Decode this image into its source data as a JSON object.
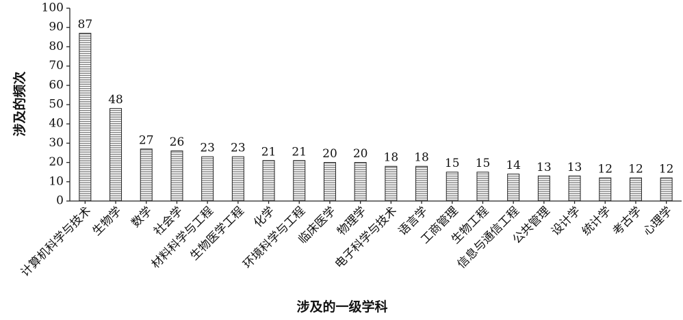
{
  "chart_data": {
    "type": "bar",
    "x_label": "涉及的一级学科",
    "y_label": "涉及的频次",
    "categories": [
      "计算机科学与技术",
      "生物学",
      "数学",
      "社会学",
      "材料科学与工程",
      "生物医学工程",
      "化学",
      "环境科学与工程",
      "临床医学",
      "物理学",
      "电子科学与技术",
      "语言学",
      "工商管理",
      "生物工程",
      "信息与通信工程",
      "公共管理",
      "设计学",
      "统计学",
      "考古学",
      "心理学"
    ],
    "values": [
      87,
      48,
      27,
      26,
      23,
      23,
      21,
      21,
      20,
      20,
      18,
      18,
      15,
      15,
      14,
      13,
      13,
      12,
      12,
      12
    ],
    "ylim": [
      0,
      100
    ],
    "yticks": [
      0,
      10,
      20,
      30,
      40,
      50,
      60,
      70,
      80,
      90,
      100
    ]
  }
}
